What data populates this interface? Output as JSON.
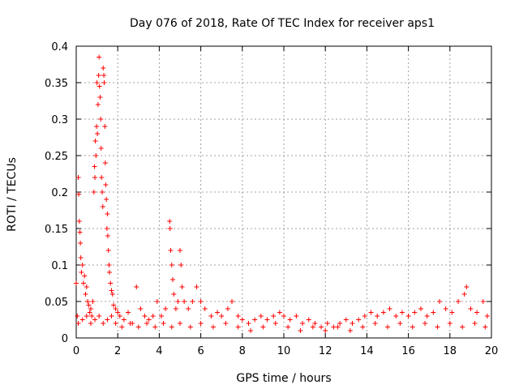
{
  "chart_data": {
    "type": "scatter",
    "title": "Day 076 of 2018, Rate Of TEC Index for receiver aps1",
    "xlabel": "GPS time / hours",
    "ylabel": "ROTI / TECUs",
    "xlim": [
      0,
      20
    ],
    "ylim": [
      0,
      0.4
    ],
    "grid": true,
    "marker": "+",
    "color": "#ff0000",
    "x_ticks": [
      {
        "value": 0,
        "label": "0"
      },
      {
        "value": 2,
        "label": "2"
      },
      {
        "value": 4,
        "label": "4"
      },
      {
        "value": 6,
        "label": "6"
      },
      {
        "value": 8,
        "label": "8"
      },
      {
        "value": 10,
        "label": "10"
      },
      {
        "value": 12,
        "label": "12"
      },
      {
        "value": 14,
        "label": "14"
      },
      {
        "value": 16,
        "label": "16"
      },
      {
        "value": 18,
        "label": "18"
      },
      {
        "value": 20,
        "label": "20"
      }
    ],
    "y_ticks": [
      {
        "value": 0,
        "label": "0"
      },
      {
        "value": 0.05,
        "label": "0.05"
      },
      {
        "value": 0.1,
        "label": "0.1"
      },
      {
        "value": 0.15,
        "label": "0.15"
      },
      {
        "value": 0.2,
        "label": "0.2"
      },
      {
        "value": 0.25,
        "label": "0.25"
      },
      {
        "value": 0.3,
        "label": "0.3"
      },
      {
        "value": 0.35,
        "label": "0.35"
      },
      {
        "value": 0.4,
        "label": "0.4"
      }
    ],
    "series": [
      {
        "name": "ROTI",
        "points": [
          [
            0.0,
            0.075
          ],
          [
            0.05,
            0.03
          ],
          [
            0.1,
            0.22
          ],
          [
            0.12,
            0.197
          ],
          [
            0.15,
            0.16
          ],
          [
            0.18,
            0.145
          ],
          [
            0.2,
            0.13
          ],
          [
            0.22,
            0.11
          ],
          [
            0.25,
            0.09
          ],
          [
            0.3,
            0.1
          ],
          [
            0.35,
            0.075
          ],
          [
            0.4,
            0.085
          ],
          [
            0.45,
            0.06
          ],
          [
            0.5,
            0.07
          ],
          [
            0.55,
            0.05
          ],
          [
            0.6,
            0.045
          ],
          [
            0.65,
            0.035
          ],
          [
            0.7,
            0.04
          ],
          [
            0.75,
            0.03
          ],
          [
            0.8,
            0.05
          ],
          [
            0.85,
            0.2
          ],
          [
            0.88,
            0.235
          ],
          [
            0.9,
            0.22
          ],
          [
            0.92,
            0.27
          ],
          [
            0.95,
            0.25
          ],
          [
            0.98,
            0.29
          ],
          [
            1.0,
            0.35
          ],
          [
            1.02,
            0.28
          ],
          [
            1.05,
            0.32
          ],
          [
            1.08,
            0.36
          ],
          [
            1.1,
            0.385
          ],
          [
            1.12,
            0.345
          ],
          [
            1.15,
            0.33
          ],
          [
            1.18,
            0.3
          ],
          [
            1.2,
            0.26
          ],
          [
            1.22,
            0.22
          ],
          [
            1.25,
            0.2
          ],
          [
            1.28,
            0.18
          ],
          [
            1.3,
            0.37
          ],
          [
            1.33,
            0.36
          ],
          [
            1.35,
            0.35
          ],
          [
            1.38,
            0.29
          ],
          [
            1.4,
            0.24
          ],
          [
            1.42,
            0.21
          ],
          [
            1.45,
            0.19
          ],
          [
            1.48,
            0.15
          ],
          [
            1.5,
            0.17
          ],
          [
            1.52,
            0.14
          ],
          [
            1.55,
            0.12
          ],
          [
            1.58,
            0.1
          ],
          [
            1.6,
            0.09
          ],
          [
            1.65,
            0.075
          ],
          [
            1.7,
            0.065
          ],
          [
            1.75,
            0.06
          ],
          [
            1.8,
            0.045
          ],
          [
            1.9,
            0.04
          ],
          [
            2.0,
            0.035
          ],
          [
            0.1,
            0.02
          ],
          [
            0.3,
            0.025
          ],
          [
            0.5,
            0.03
          ],
          [
            0.7,
            0.02
          ],
          [
            0.9,
            0.025
          ],
          [
            1.1,
            0.03
          ],
          [
            1.3,
            0.02
          ],
          [
            1.5,
            0.025
          ],
          [
            1.7,
            0.03
          ],
          [
            1.9,
            0.02
          ],
          [
            2.1,
            0.03
          ],
          [
            2.3,
            0.025
          ],
          [
            2.5,
            0.035
          ],
          [
            2.7,
            0.02
          ],
          [
            2.9,
            0.07
          ],
          [
            3.1,
            0.04
          ],
          [
            3.3,
            0.03
          ],
          [
            3.5,
            0.025
          ],
          [
            3.7,
            0.03
          ],
          [
            3.9,
            0.05
          ],
          [
            4.1,
            0.03
          ],
          [
            4.3,
            0.04
          ],
          [
            4.5,
            0.16
          ],
          [
            4.52,
            0.15
          ],
          [
            4.55,
            0.12
          ],
          [
            4.6,
            0.1
          ],
          [
            4.65,
            0.08
          ],
          [
            4.7,
            0.06
          ],
          [
            4.8,
            0.04
          ],
          [
            4.9,
            0.05
          ],
          [
            5.0,
            0.12
          ],
          [
            5.05,
            0.1
          ],
          [
            5.1,
            0.07
          ],
          [
            5.2,
            0.05
          ],
          [
            5.4,
            0.04
          ],
          [
            5.6,
            0.05
          ],
          [
            5.8,
            0.07
          ],
          [
            6.0,
            0.05
          ],
          [
            6.2,
            0.04
          ],
          [
            6.5,
            0.03
          ],
          [
            6.8,
            0.035
          ],
          [
            7.0,
            0.03
          ],
          [
            7.3,
            0.04
          ],
          [
            7.5,
            0.05
          ],
          [
            7.8,
            0.03
          ],
          [
            8.0,
            0.025
          ],
          [
            8.3,
            0.02
          ],
          [
            8.6,
            0.025
          ],
          [
            8.9,
            0.03
          ],
          [
            9.2,
            0.025
          ],
          [
            9.5,
            0.03
          ],
          [
            9.8,
            0.035
          ],
          [
            10.0,
            0.03
          ],
          [
            10.3,
            0.025
          ],
          [
            10.6,
            0.03
          ],
          [
            10.9,
            0.02
          ],
          [
            11.2,
            0.025
          ],
          [
            11.5,
            0.02
          ],
          [
            11.8,
            0.015
          ],
          [
            12.1,
            0.02
          ],
          [
            12.4,
            0.015
          ],
          [
            12.7,
            0.02
          ],
          [
            13.0,
            0.025
          ],
          [
            13.3,
            0.02
          ],
          [
            13.6,
            0.025
          ],
          [
            13.9,
            0.03
          ],
          [
            14.2,
            0.035
          ],
          [
            14.5,
            0.03
          ],
          [
            14.8,
            0.035
          ],
          [
            15.1,
            0.04
          ],
          [
            15.4,
            0.03
          ],
          [
            15.7,
            0.035
          ],
          [
            16.0,
            0.03
          ],
          [
            16.3,
            0.035
          ],
          [
            16.6,
            0.04
          ],
          [
            16.9,
            0.03
          ],
          [
            17.2,
            0.035
          ],
          [
            17.5,
            0.05
          ],
          [
            17.8,
            0.04
          ],
          [
            18.1,
            0.035
          ],
          [
            18.4,
            0.05
          ],
          [
            18.7,
            0.06
          ],
          [
            18.8,
            0.07
          ],
          [
            19.0,
            0.04
          ],
          [
            19.3,
            0.035
          ],
          [
            19.6,
            0.05
          ],
          [
            19.8,
            0.03
          ],
          [
            2.2,
            0.015
          ],
          [
            2.6,
            0.02
          ],
          [
            3.0,
            0.015
          ],
          [
            3.4,
            0.02
          ],
          [
            3.8,
            0.015
          ],
          [
            4.2,
            0.02
          ],
          [
            4.6,
            0.015
          ],
          [
            5.0,
            0.02
          ],
          [
            5.5,
            0.015
          ],
          [
            6.0,
            0.02
          ],
          [
            6.6,
            0.015
          ],
          [
            7.2,
            0.02
          ],
          [
            7.8,
            0.015
          ],
          [
            8.4,
            0.01
          ],
          [
            9.0,
            0.015
          ],
          [
            9.6,
            0.02
          ],
          [
            10.2,
            0.015
          ],
          [
            10.8,
            0.01
          ],
          [
            11.4,
            0.015
          ],
          [
            12.0,
            0.01
          ],
          [
            12.6,
            0.015
          ],
          [
            13.2,
            0.01
          ],
          [
            13.8,
            0.015
          ],
          [
            14.4,
            0.02
          ],
          [
            15.0,
            0.015
          ],
          [
            15.6,
            0.02
          ],
          [
            16.2,
            0.015
          ],
          [
            16.8,
            0.02
          ],
          [
            17.4,
            0.015
          ],
          [
            18.0,
            0.02
          ],
          [
            18.6,
            0.015
          ],
          [
            19.2,
            0.02
          ],
          [
            19.7,
            0.015
          ]
        ]
      }
    ]
  }
}
